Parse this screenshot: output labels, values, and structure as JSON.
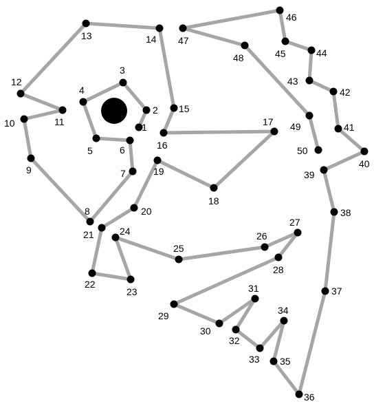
{
  "colors": {
    "line": "#a6a6a6",
    "dot": "#000000",
    "background": "#ffffff"
  },
  "points": [
    {
      "label": "1"
    },
    {
      "label": "2"
    },
    {
      "label": "3"
    },
    {
      "label": "4"
    },
    {
      "label": "5"
    },
    {
      "label": "6"
    },
    {
      "label": "7"
    },
    {
      "label": "8"
    },
    {
      "label": "9"
    },
    {
      "label": "10"
    },
    {
      "label": "11"
    },
    {
      "label": "12"
    },
    {
      "label": "13"
    },
    {
      "label": "14"
    },
    {
      "label": "15"
    },
    {
      "label": "16"
    },
    {
      "label": "17"
    },
    {
      "label": "18"
    },
    {
      "label": "19"
    },
    {
      "label": "20"
    },
    {
      "label": "21"
    },
    {
      "label": "22"
    },
    {
      "label": "23"
    },
    {
      "label": "24"
    },
    {
      "label": "25"
    },
    {
      "label": "26"
    },
    {
      "label": "27"
    },
    {
      "label": "28"
    },
    {
      "label": "29"
    },
    {
      "label": "30"
    },
    {
      "label": "31"
    },
    {
      "label": "32"
    },
    {
      "label": "33"
    },
    {
      "label": "34"
    },
    {
      "label": "35"
    },
    {
      "label": "36"
    },
    {
      "label": "37"
    },
    {
      "label": "38"
    },
    {
      "label": "39"
    },
    {
      "label": "40"
    },
    {
      "label": "41"
    },
    {
      "label": "42"
    },
    {
      "label": "43"
    },
    {
      "label": "44"
    },
    {
      "label": "45"
    },
    {
      "label": "46"
    },
    {
      "label": "47"
    },
    {
      "label": "48"
    },
    {
      "label": "49"
    },
    {
      "label": "50"
    }
  ]
}
